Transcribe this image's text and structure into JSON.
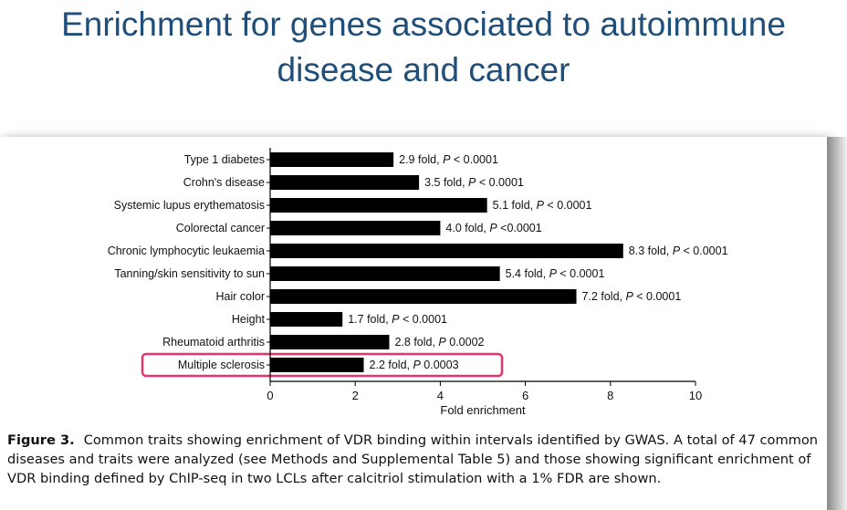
{
  "slide": {
    "title_line1": "Enrichment for genes associated to autoimmune",
    "title_line2": "disease and cancer"
  },
  "figure": {
    "label": "Figure 3.",
    "caption": "Common traits showing enrichment of VDR binding within intervals identified by GWAS. A total of 47 common diseases and traits were analyzed (see Methods and Supplemental Table 5) and those showing significant enrichment of VDR binding defined by ChIP-seq in two LCLs after calcitriol stimulation with a 1% FDR are shown."
  },
  "chart_data": {
    "type": "bar",
    "orientation": "horizontal",
    "categories": [
      "Type 1 diabetes",
      "Crohn's disease",
      "Systemic lupus erythematosis",
      "Colorectal cancer",
      "Chronic lymphocytic leukaemia",
      "Tanning/skin sensitivity to sun",
      "Hair color",
      "Height",
      "Rheumatoid arthritis",
      "Multiple sclerosis"
    ],
    "values": [
      2.9,
      3.5,
      5.1,
      4.0,
      8.3,
      5.4,
      7.2,
      1.7,
      2.8,
      2.2
    ],
    "data_labels": [
      {
        "fold": "2.9 fold,",
        "p": "P",
        "rest": " < 0.0001"
      },
      {
        "fold": "3.5 fold,",
        "p": "P",
        "rest": " < 0.0001"
      },
      {
        "fold": "5.1 fold,",
        "p": "P",
        "rest": " < 0.0001"
      },
      {
        "fold": "4.0 fold,",
        "p": "P",
        "rest": "  <0.0001"
      },
      {
        "fold": "8.3 fold,",
        "p": "P",
        "rest": " < 0.0001"
      },
      {
        "fold": "5.4 fold,",
        "p": "P",
        "rest": " < 0.0001"
      },
      {
        "fold": "7.2 fold,",
        "p": "P",
        "rest": " < 0.0001"
      },
      {
        "fold": "1.7 fold,",
        "p": "P",
        "rest": " < 0.0001"
      },
      {
        "fold": "2.8 fold,",
        "p": "P",
        "rest": " 0.0002"
      },
      {
        "fold": "2.2 fold,",
        "p": "P",
        "rest": "  0.0003"
      }
    ],
    "highlighted_category": "Multiple sclerosis",
    "highlight_color": "#e8336d",
    "bar_color": "#000000",
    "xlabel": "Fold enrichment",
    "xlim": [
      0,
      10
    ],
    "xticks": [
      0,
      2,
      4,
      6,
      8,
      10
    ]
  }
}
